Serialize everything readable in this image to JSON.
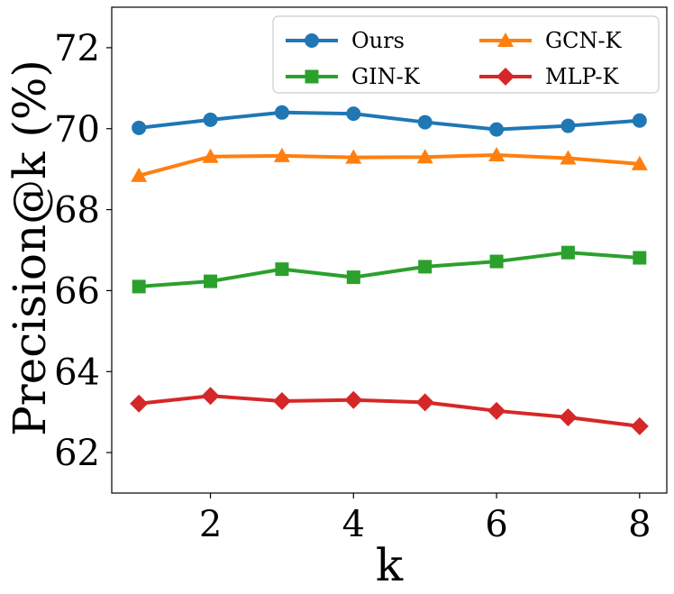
{
  "chart_data": {
    "type": "line",
    "title": "",
    "xlabel": "k",
    "ylabel": "Precision@k (%)",
    "x": [
      1,
      2,
      3,
      4,
      5,
      6,
      7,
      8
    ],
    "xlim": [
      0.62,
      8.38
    ],
    "ylim": [
      61.0,
      73.0
    ],
    "xticks": [
      2,
      4,
      6,
      8
    ],
    "yticks": [
      62,
      64,
      66,
      68,
      70,
      72
    ],
    "grid": false,
    "legend_position": "top-right",
    "series": [
      {
        "name": "Ours",
        "color": "#1f77b4",
        "marker": "circle",
        "values": [
          70.02,
          70.22,
          70.4,
          70.37,
          70.16,
          69.98,
          70.07,
          70.2
        ]
      },
      {
        "name": "GCN-K",
        "color": "#ff7f0e",
        "marker": "triangle",
        "values": [
          68.84,
          69.31,
          69.33,
          69.29,
          69.3,
          69.35,
          69.27,
          69.13
        ]
      },
      {
        "name": "GIN-K",
        "color": "#2ca02c",
        "marker": "square",
        "values": [
          66.1,
          66.23,
          66.53,
          66.33,
          66.59,
          66.72,
          66.94,
          66.81
        ]
      },
      {
        "name": "MLP-K",
        "color": "#d62728",
        "marker": "diamond",
        "values": [
          63.21,
          63.4,
          63.27,
          63.3,
          63.24,
          63.03,
          62.87,
          62.65
        ]
      }
    ]
  }
}
